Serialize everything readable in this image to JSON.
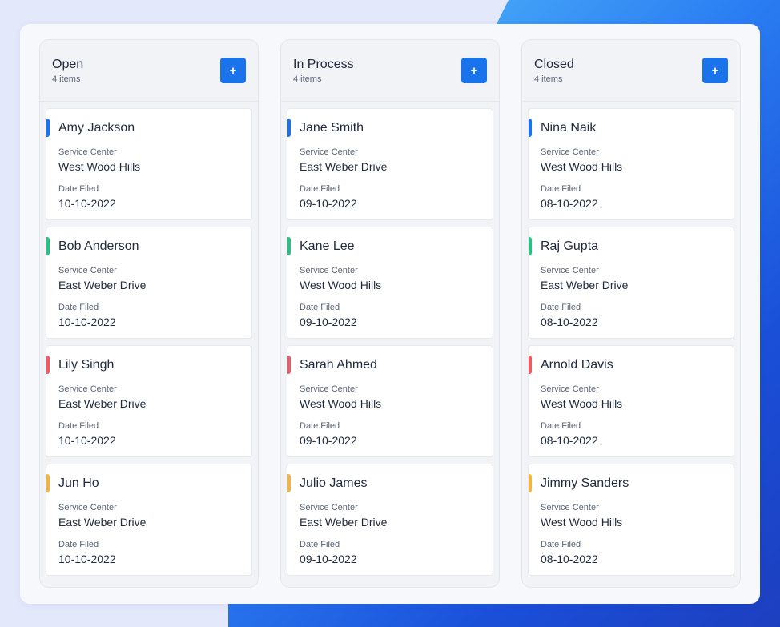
{
  "colors": {
    "accent": "#1a73ea",
    "blue": "#1a73ea",
    "green": "#27c281",
    "red": "#ee5b66",
    "amber": "#f5b342"
  },
  "labels": {
    "service_center": "Service Center",
    "date_filed": "Date Filed",
    "add": "+"
  },
  "columns": [
    {
      "title": "Open",
      "count": "4 items",
      "cards": [
        {
          "name": "Amy Jackson",
          "service_center": "West Wood Hills",
          "date": "10-10-2022",
          "color": "#1a73ea"
        },
        {
          "name": "Bob Anderson",
          "service_center": "East Weber Drive",
          "date": "10-10-2022",
          "color": "#27c281"
        },
        {
          "name": "Lily Singh",
          "service_center": "East Weber Drive",
          "date": "10-10-2022",
          "color": "#ee5b66"
        },
        {
          "name": "Jun Ho",
          "service_center": "East Weber Drive",
          "date": "10-10-2022",
          "color": "#f5b342"
        }
      ]
    },
    {
      "title": "In Process",
      "count": "4 items",
      "cards": [
        {
          "name": "Jane Smith",
          "service_center": "East Weber Drive",
          "date": "09-10-2022",
          "color": "#1a73ea"
        },
        {
          "name": "Kane Lee",
          "service_center": "West Wood Hills",
          "date": "09-10-2022",
          "color": "#27c281"
        },
        {
          "name": "Sarah Ahmed",
          "service_center": "West Wood Hills",
          "date": "09-10-2022",
          "color": "#ee5b66"
        },
        {
          "name": "Julio James",
          "service_center": "East Weber Drive",
          "date": "09-10-2022",
          "color": "#f5b342"
        }
      ]
    },
    {
      "title": "Closed",
      "count": "4 items",
      "cards": [
        {
          "name": "Nina Naik",
          "service_center": "West Wood Hills",
          "date": "08-10-2022",
          "color": "#1a73ea"
        },
        {
          "name": "Raj Gupta",
          "service_center": "East Weber Drive",
          "date": "08-10-2022",
          "color": "#27c281"
        },
        {
          "name": "Arnold Davis",
          "service_center": "West Wood Hills",
          "date": "08-10-2022",
          "color": "#ee5b66"
        },
        {
          "name": "Jimmy Sanders",
          "service_center": "West Wood Hills",
          "date": "08-10-2022",
          "color": "#f5b342"
        }
      ]
    }
  ]
}
